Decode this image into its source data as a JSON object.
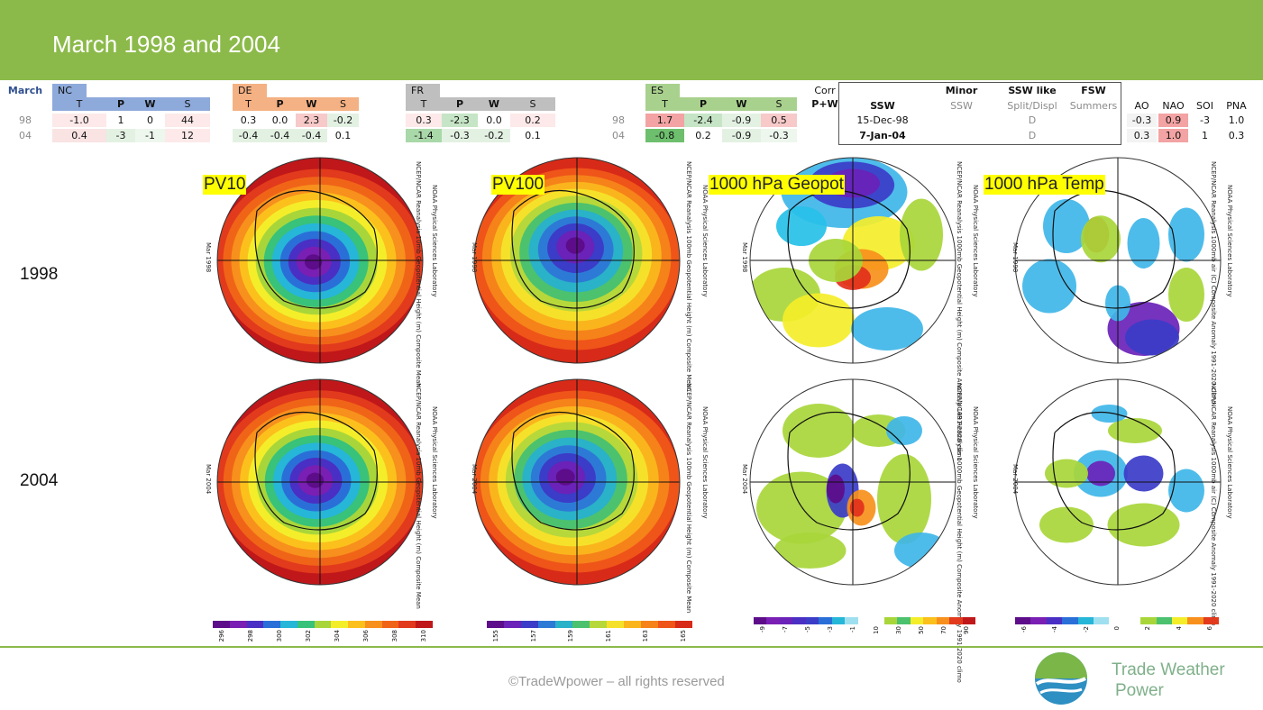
{
  "header": {
    "title": "March 1998 and 2004"
  },
  "row_label": "March",
  "countries": [
    {
      "code": "NC",
      "headers": [
        "T",
        "P",
        "W",
        "S"
      ],
      "rows": [
        {
          "year": "98",
          "vals": [
            "-1.0",
            "1",
            "0",
            "44"
          ]
        },
        {
          "year": "04",
          "vals": [
            "0.4",
            "-3",
            "-1",
            "12"
          ]
        }
      ]
    },
    {
      "code": "DE",
      "headers": [
        "T",
        "P",
        "W",
        "S"
      ],
      "rows": [
        {
          "vals": [
            "0.3",
            "0.0",
            "2.3",
            "-0.2"
          ]
        },
        {
          "vals": [
            "-0.4",
            "-0.4",
            "-0.4",
            "0.1"
          ]
        }
      ]
    },
    {
      "code": "FR",
      "headers": [
        "T",
        "P",
        "W",
        "S"
      ],
      "rows": [
        {
          "vals": [
            "0.3",
            "-2.3",
            "0.0",
            "0.2"
          ]
        },
        {
          "vals": [
            "-1.4",
            "-0.3",
            "-0.2",
            "0.1"
          ]
        }
      ]
    },
    {
      "code": "ES",
      "headers": [
        "T",
        "P",
        "W",
        "S"
      ],
      "rows": [
        {
          "year": "98",
          "vals": [
            "1.7",
            "-2.4",
            "-0.9",
            "0.5"
          ]
        },
        {
          "year": "04",
          "vals": [
            "-0.8",
            "0.2",
            "-0.9",
            "-0.3"
          ]
        }
      ]
    }
  ],
  "corr": {
    "line1": "Corr",
    "line2": "P+W"
  },
  "ssw_table": {
    "headers_top": [
      "",
      "Minor",
      "SSW like",
      "FSW"
    ],
    "headers_bottom": [
      "SSW",
      "SSW",
      "Split/Displ",
      "Summers"
    ],
    "rows": [
      [
        "15-Dec-98",
        "",
        "D",
        ""
      ],
      [
        "7-Jan-04",
        "",
        "D",
        ""
      ]
    ]
  },
  "indices": {
    "headers": [
      "AO",
      "NAO",
      "SOI",
      "PNA"
    ],
    "rows": [
      [
        "-0.3",
        "0.9",
        "-3",
        "1.0"
      ],
      [
        "0.3",
        "1.0",
        "1",
        "0.3"
      ]
    ]
  },
  "maps": {
    "labels": [
      "PV10",
      "PV100",
      "1000 hPa Geopot",
      "1000 hPa Temp"
    ],
    "years": [
      "1998",
      "2004"
    ],
    "map_dates": [
      "Mar 1998",
      "Mar 2004"
    ],
    "captions": [
      "NCEP/NCAR Reanalysis 10mb Geopotential Height (m) Composite Mean",
      "NCEP/NCAR Reanalysis 100mb Geopotential Height (m) Composite Mean",
      "NCEP/NCAR Reanalysis 1000mb Geopotential Height (m) Composite Anomaly 1991-2020 climo",
      "NCEP/NCAR Reanalysis 1000mb air (C) Composite Anomaly 1991-2020 climo"
    ],
    "lab": "NOAA Physical Sciences Laboratory"
  },
  "colorbars": [
    {
      "ticks": [
        "296",
        "298",
        "300",
        "302",
        "304",
        "306",
        "308",
        "310"
      ]
    },
    {
      "ticks": [
        "155",
        "157",
        "159",
        "161",
        "163",
        "165"
      ]
    },
    {
      "ticks": [
        "-9",
        "-7",
        "-5",
        "-3",
        "-1",
        "10",
        "30",
        "50",
        "70",
        "90"
      ]
    },
    {
      "ticks": [
        "-6",
        "-4",
        "-2",
        "0",
        "2",
        "4",
        "6"
      ]
    }
  ],
  "footer": {
    "copyright": "©TradeWpower – all rights reserved",
    "logo_line1": "Trade Weather",
    "logo_line2": "Power"
  },
  "colors": {
    "header": "#8cba4a",
    "nc": "#8eaadb",
    "de": "#f4b183",
    "fr": "#bfbfbf",
    "es": "#a9d18e"
  }
}
